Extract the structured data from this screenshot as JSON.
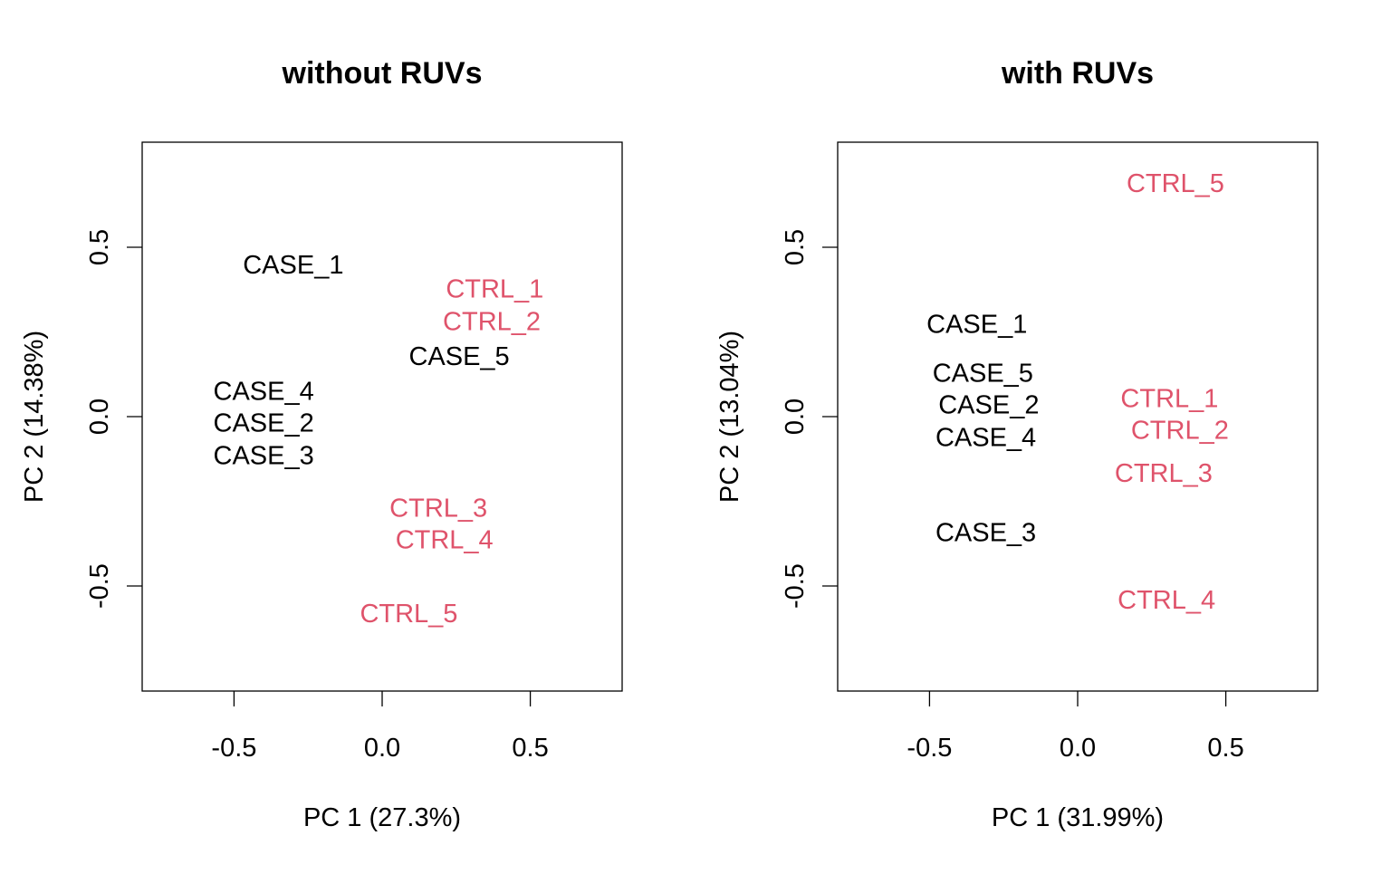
{
  "chart_data": [
    {
      "type": "scatter",
      "title": "without RUVs",
      "xlabel": "PC 1 (27.3%)",
      "ylabel": "PC 2 (14.38%)",
      "xlim": [
        -0.81,
        0.81
      ],
      "ylim": [
        -0.81,
        0.81
      ],
      "xticks": [
        "-0.5",
        "0.0",
        "0.5"
      ],
      "yticks": [
        "-0.5",
        "0.0",
        "0.5"
      ],
      "points": [
        {
          "label": "CASE_1",
          "x": -0.3,
          "y": 0.45,
          "group": "case"
        },
        {
          "label": "CASE_2",
          "x": -0.4,
          "y": -0.05,
          "group": "case"
        },
        {
          "label": "CASE_3",
          "x": -0.4,
          "y": -0.05,
          "group": "case"
        },
        {
          "label": "CASE_4",
          "x": -0.4,
          "y": 0.045,
          "group": "case"
        },
        {
          "label": "CASE_5",
          "x": 0.26,
          "y": 0.18,
          "group": "case"
        },
        {
          "label": "CTRL_1",
          "x": 0.38,
          "y": 0.35,
          "group": "ctrl"
        },
        {
          "label": "CTRL_2",
          "x": 0.37,
          "y": 0.31,
          "group": "ctrl"
        },
        {
          "label": "CTRL_3",
          "x": 0.19,
          "y": -0.28,
          "group": "ctrl"
        },
        {
          "label": "CTRL_4",
          "x": 0.21,
          "y": -0.35,
          "group": "ctrl"
        },
        {
          "label": "CTRL_5",
          "x": 0.09,
          "y": -0.58,
          "group": "ctrl"
        }
      ]
    },
    {
      "type": "scatter",
      "title": "with RUVs",
      "xlabel": "PC 1 (31.99%)",
      "ylabel": "PC 2 (13.04%)",
      "xlim": [
        -0.81,
        0.81
      ],
      "ylim": [
        -0.81,
        0.81
      ],
      "xticks": [
        "-0.5",
        "0.0",
        "0.5"
      ],
      "yticks": [
        "-0.5",
        "0.0",
        "0.5"
      ],
      "points": [
        {
          "label": "CASE_1",
          "x": -0.34,
          "y": 0.275,
          "group": "case"
        },
        {
          "label": "CASE_2",
          "x": -0.3,
          "y": 0.037,
          "group": "case"
        },
        {
          "label": "CASE_3",
          "x": -0.31,
          "y": -0.34,
          "group": "case"
        },
        {
          "label": "CASE_4",
          "x": -0.31,
          "y": -0.016,
          "group": "case"
        },
        {
          "label": "CASE_5",
          "x": -0.32,
          "y": 0.085,
          "group": "case"
        },
        {
          "label": "CTRL_1",
          "x": 0.31,
          "y": 0.02,
          "group": "ctrl"
        },
        {
          "label": "CTRL_2",
          "x": 0.345,
          "y": -0.003,
          "group": "ctrl"
        },
        {
          "label": "CTRL_3",
          "x": 0.29,
          "y": -0.166,
          "group": "ctrl"
        },
        {
          "label": "CTRL_4",
          "x": 0.3,
          "y": -0.54,
          "group": "ctrl"
        },
        {
          "label": "CTRL_5",
          "x": 0.33,
          "y": 0.69,
          "group": "ctrl"
        }
      ]
    }
  ],
  "colors": {
    "case": "#000000",
    "ctrl": "#DF536B"
  }
}
